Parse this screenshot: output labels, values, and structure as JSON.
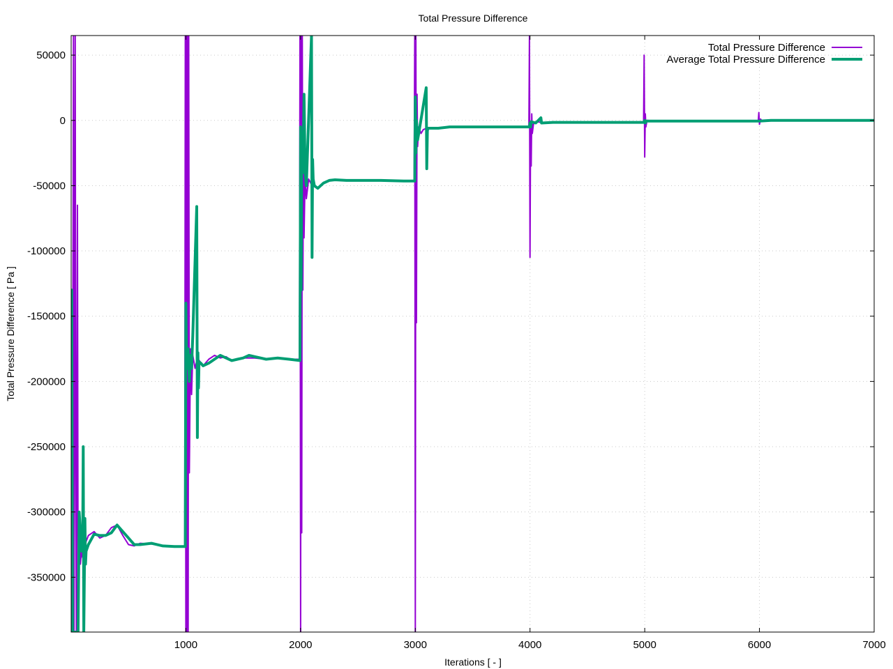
{
  "chart_data": {
    "type": "line",
    "title": "Total Pressure Difference",
    "xlabel": "Iterations [ - ]",
    "ylabel": "Total Pressure Difference [ Pa ]",
    "xlim": [
      0,
      7000
    ],
    "ylim": [
      -392000,
      65000
    ],
    "xticks": [
      1000,
      2000,
      3000,
      4000,
      5000,
      6000,
      7000
    ],
    "xtick_labels": [
      "1000",
      "2000",
      "3000",
      "4000",
      "5000",
      "6000",
      "7000"
    ],
    "yticks": [
      50000,
      0,
      -50000,
      -100000,
      -150000,
      -200000,
      -250000,
      -300000,
      -350000
    ],
    "ytick_labels": [
      "50000",
      "0",
      "-50000",
      "-100000",
      "-150000",
      "-200000",
      "-250000",
      "-300000",
      "-350000"
    ],
    "grid": true,
    "legend_position": "top-right",
    "series": [
      {
        "name": "Total Pressure Difference",
        "color": "#9400d3",
        "width": 2,
        "points": [
          [
            0,
            -392000
          ],
          [
            5,
            -130000
          ],
          [
            10,
            -392000
          ],
          [
            20,
            65000
          ],
          [
            25,
            -392000
          ],
          [
            35,
            65000
          ],
          [
            40,
            -270000
          ],
          [
            45,
            -392000
          ],
          [
            55,
            -65000
          ],
          [
            60,
            -360000
          ],
          [
            70,
            -310000
          ],
          [
            80,
            -340000
          ],
          [
            90,
            -330000
          ],
          [
            100,
            -335000
          ],
          [
            110,
            -332000
          ],
          [
            120,
            -325000
          ],
          [
            150,
            -318000
          ],
          [
            200,
            -315000
          ],
          [
            250,
            -320000
          ],
          [
            300,
            -318000
          ],
          [
            350,
            -312000
          ],
          [
            400,
            -310000
          ],
          [
            450,
            -318000
          ],
          [
            500,
            -325000
          ],
          [
            550,
            -326000
          ],
          [
            600,
            -324000
          ],
          [
            700,
            -324500
          ],
          [
            800,
            -326000
          ],
          [
            900,
            -326500
          ],
          [
            990,
            -326500
          ],
          [
            995,
            65000
          ],
          [
            1000,
            -392000
          ],
          [
            1005,
            65000
          ],
          [
            1010,
            -392000
          ],
          [
            1015,
            65000
          ],
          [
            1020,
            -392000
          ],
          [
            1025,
            65000
          ],
          [
            1030,
            -270000
          ],
          [
            1040,
            -175000
          ],
          [
            1050,
            -210000
          ],
          [
            1060,
            -180000
          ],
          [
            1080,
            -190000
          ],
          [
            1100,
            -182000
          ],
          [
            1150,
            -188000
          ],
          [
            1200,
            -183000
          ],
          [
            1250,
            -180000
          ],
          [
            1300,
            -182000
          ],
          [
            1350,
            -181000
          ],
          [
            1400,
            -184000
          ],
          [
            1500,
            -182000
          ],
          [
            1600,
            -182000
          ],
          [
            1700,
            -183000
          ],
          [
            1800,
            -182000
          ],
          [
            1900,
            -183000
          ],
          [
            1990,
            -183000
          ],
          [
            1995,
            65000
          ],
          [
            2000,
            -392000
          ],
          [
            2005,
            65000
          ],
          [
            2010,
            -316000
          ],
          [
            2015,
            65000
          ],
          [
            2020,
            -130000
          ],
          [
            2025,
            -20000
          ],
          [
            2030,
            -90000
          ],
          [
            2040,
            -40000
          ],
          [
            2050,
            -60000
          ],
          [
            2070,
            -45000
          ],
          [
            2100,
            -50000
          ],
          [
            2150,
            -52000
          ],
          [
            2200,
            -48000
          ],
          [
            2250,
            -46000
          ],
          [
            2300,
            -45500
          ],
          [
            2400,
            -46000
          ],
          [
            2500,
            -46000
          ],
          [
            2700,
            -46000
          ],
          [
            2900,
            -46500
          ],
          [
            2990,
            -46500
          ],
          [
            2995,
            65000
          ],
          [
            3000,
            -392000
          ],
          [
            3005,
            65000
          ],
          [
            3010,
            -155000
          ],
          [
            3015,
            20000
          ],
          [
            3020,
            -20000
          ],
          [
            3030,
            -5000
          ],
          [
            3050,
            -10000
          ],
          [
            3070,
            -7000
          ],
          [
            3100,
            -6000
          ],
          [
            3200,
            -6000
          ],
          [
            3300,
            -5000
          ],
          [
            3500,
            -5000
          ],
          [
            3700,
            -5000
          ],
          [
            3900,
            -5000
          ],
          [
            3990,
            -5000
          ],
          [
            3995,
            65000
          ],
          [
            4000,
            -105000
          ],
          [
            4005,
            -5000
          ],
          [
            4010,
            -35000
          ],
          [
            4015,
            5000
          ],
          [
            4020,
            -10000
          ],
          [
            4030,
            -3000
          ],
          [
            4050,
            -1000
          ],
          [
            4100,
            -1500
          ],
          [
            4200,
            -1500
          ],
          [
            4500,
            -1500
          ],
          [
            4800,
            -1500
          ],
          [
            4990,
            -1500
          ],
          [
            4995,
            50000
          ],
          [
            5000,
            -28000
          ],
          [
            5005,
            5000
          ],
          [
            5010,
            -5000
          ],
          [
            5020,
            0
          ],
          [
            5100,
            -500
          ],
          [
            5500,
            -500
          ],
          [
            5990,
            -500
          ],
          [
            5995,
            6000
          ],
          [
            6000,
            -3000
          ],
          [
            6010,
            1000
          ],
          [
            6020,
            -200
          ],
          [
            6100,
            0
          ],
          [
            6500,
            0
          ],
          [
            7000,
            0
          ]
        ]
      },
      {
        "name": "Average Total Pressure Difference",
        "color": "#009e73",
        "width": 4,
        "points": [
          [
            0,
            -392000
          ],
          [
            5,
            -130000
          ],
          [
            12,
            -392000
          ],
          [
            20,
            -392000
          ],
          [
            60,
            -392000
          ],
          [
            70,
            -300000
          ],
          [
            90,
            -330000
          ],
          [
            100,
            -330000
          ],
          [
            105,
            -250000
          ],
          [
            110,
            -392000
          ],
          [
            115,
            -350000
          ],
          [
            120,
            -305000
          ],
          [
            125,
            -340000
          ],
          [
            130,
            -330000
          ],
          [
            150,
            -325000
          ],
          [
            200,
            -317000
          ],
          [
            250,
            -318000
          ],
          [
            300,
            -318000
          ],
          [
            350,
            -316000
          ],
          [
            400,
            -310000
          ],
          [
            450,
            -315000
          ],
          [
            500,
            -320000
          ],
          [
            550,
            -325000
          ],
          [
            600,
            -325000
          ],
          [
            700,
            -324000
          ],
          [
            800,
            -326000
          ],
          [
            900,
            -326500
          ],
          [
            995,
            -326500
          ],
          [
            1000,
            -140000
          ],
          [
            1005,
            -180000
          ],
          [
            1010,
            -190000
          ],
          [
            1020,
            -175000
          ],
          [
            1030,
            -200000
          ],
          [
            1040,
            -180000
          ],
          [
            1050,
            -190000
          ],
          [
            1060,
            -165000
          ],
          [
            1095,
            -66000
          ],
          [
            1100,
            -243000
          ],
          [
            1105,
            -178000
          ],
          [
            1110,
            -205000
          ],
          [
            1115,
            -185000
          ],
          [
            1130,
            -186000
          ],
          [
            1150,
            -188000
          ],
          [
            1200,
            -186000
          ],
          [
            1250,
            -183000
          ],
          [
            1300,
            -180000
          ],
          [
            1350,
            -182000
          ],
          [
            1400,
            -184000
          ],
          [
            1450,
            -183000
          ],
          [
            1500,
            -182000
          ],
          [
            1550,
            -180000
          ],
          [
            1600,
            -181000
          ],
          [
            1700,
            -183000
          ],
          [
            1800,
            -182000
          ],
          [
            1900,
            -183000
          ],
          [
            1995,
            -184000
          ],
          [
            2000,
            -5000
          ],
          [
            2005,
            -130000
          ],
          [
            2010,
            -10000
          ],
          [
            2020,
            -40000
          ],
          [
            2030,
            20000
          ],
          [
            2040,
            -40000
          ],
          [
            2050,
            -50000
          ],
          [
            2095,
            65000
          ],
          [
            2100,
            -105000
          ],
          [
            2105,
            -30000
          ],
          [
            2110,
            -45000
          ],
          [
            2120,
            -50000
          ],
          [
            2150,
            -52000
          ],
          [
            2200,
            -48000
          ],
          [
            2250,
            -46000
          ],
          [
            2300,
            -45500
          ],
          [
            2400,
            -46000
          ],
          [
            2500,
            -46000
          ],
          [
            2700,
            -46000
          ],
          [
            2900,
            -46500
          ],
          [
            2995,
            -46500
          ],
          [
            3000,
            18000
          ],
          [
            3005,
            -25000
          ],
          [
            3010,
            0
          ],
          [
            3020,
            -15000
          ],
          [
            3030,
            -10000
          ],
          [
            3095,
            25000
          ],
          [
            3100,
            -37000
          ],
          [
            3105,
            -8000
          ],
          [
            3110,
            -6000
          ],
          [
            3200,
            -6000
          ],
          [
            3300,
            -5000
          ],
          [
            3500,
            -5000
          ],
          [
            3700,
            -5000
          ],
          [
            3995,
            -5000
          ],
          [
            4000,
            -2000
          ],
          [
            4005,
            -5000
          ],
          [
            4010,
            -1000
          ],
          [
            4050,
            -2000
          ],
          [
            4095,
            2000
          ],
          [
            4100,
            -2000
          ],
          [
            4200,
            -1500
          ],
          [
            4500,
            -1500
          ],
          [
            4800,
            -1500
          ],
          [
            4995,
            -1500
          ],
          [
            5000,
            0
          ],
          [
            5005,
            -2000
          ],
          [
            5010,
            -500
          ],
          [
            5095,
            -500
          ],
          [
            5100,
            -500
          ],
          [
            5500,
            -500
          ],
          [
            6000,
            -500
          ],
          [
            6100,
            0
          ],
          [
            6500,
            0
          ],
          [
            7000,
            0
          ]
        ]
      }
    ]
  }
}
